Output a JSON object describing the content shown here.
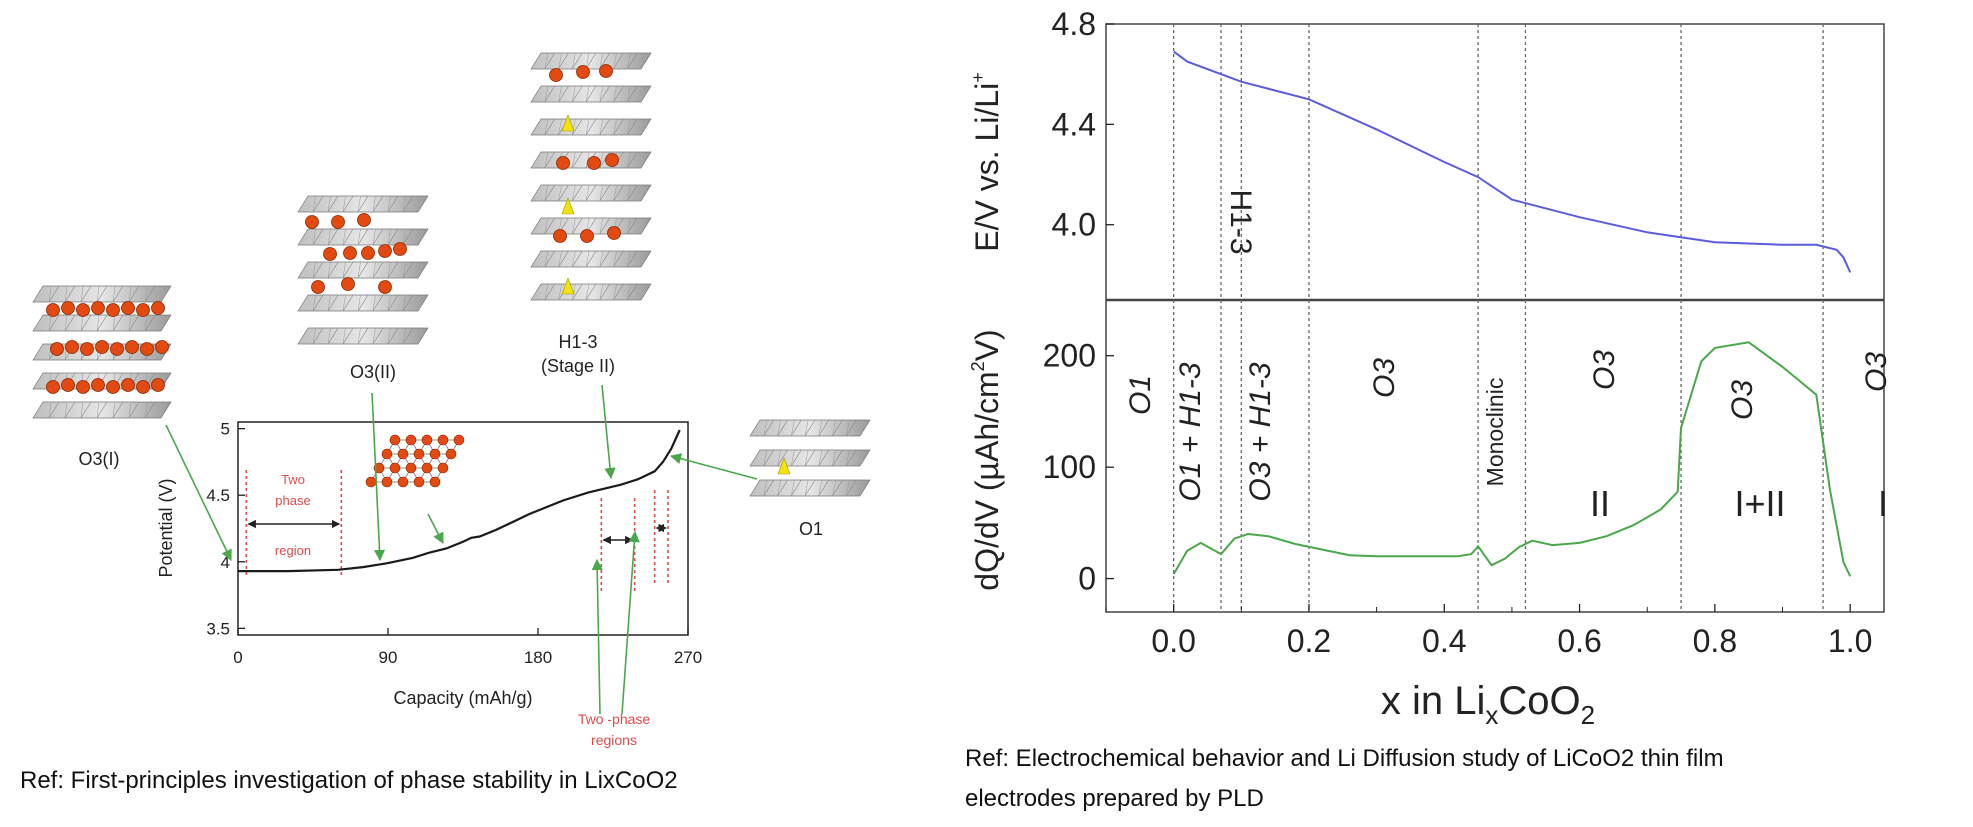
{
  "left_figure": {
    "structures": {
      "o3_i": "O3(I)",
      "o3_ii": "O3(II)",
      "h13_line1": "H1-3",
      "h13_line2": "(Stage II)",
      "o1": "O1"
    },
    "annotations": {
      "two_phase_line1": "Two",
      "two_phase_line2": "phase",
      "two_phase_line3": "region",
      "two_phase_regions_line1": "Two -phase",
      "two_phase_regions_line2": "regions"
    },
    "reference": "Ref: First-principles investigation of phase stability in LixCoO2"
  },
  "right_figure": {
    "phase_labels": {
      "o1": "O1",
      "o1_h13": "O1 + H1-3",
      "h13": "H1-3",
      "o3_h13": "O3 + H1-3",
      "o3_a": "O3",
      "monoclinic": "Monoclinic",
      "o3_b": "O3",
      "o3_c": "O3",
      "o3_d": "O3",
      "ii": "II",
      "i_ii": "I+II",
      "i": "I"
    },
    "reference_line1": "Ref: Electrochemical behavior and Li Diffusion study of LiCoO2 thin film",
    "reference_line2": "electrodes prepared by PLD"
  },
  "chart_data": [
    {
      "type": "line",
      "xlabel": "Capacity (mAh/g)",
      "ylabel": "Potential (V)",
      "xlim": [
        0,
        270
      ],
      "ylim": [
        3.45,
        5.05
      ],
      "xticks": [
        0,
        90,
        180,
        270
      ],
      "yticks": [
        3.5,
        4,
        4.5,
        5
      ],
      "grid": false,
      "two_phase_boundaries": [
        5,
        62,
        218,
        238,
        250,
        258
      ],
      "series": [
        {
          "color": "#1a1a1a",
          "x": [
            0,
            30,
            60,
            75,
            90,
            105,
            115,
            125,
            135,
            140,
            145,
            155,
            175,
            195,
            210,
            220,
            230,
            240,
            250,
            255,
            260,
            265
          ],
          "y": [
            3.93,
            3.93,
            3.94,
            3.96,
            3.99,
            4.03,
            4.07,
            4.1,
            4.15,
            4.18,
            4.19,
            4.24,
            4.36,
            4.46,
            4.52,
            4.55,
            4.58,
            4.62,
            4.68,
            4.75,
            4.85,
            4.99
          ]
        }
      ]
    },
    {
      "type": "line",
      "xlabel": "x in LixCoO2",
      "xlabel_main": "x in Li",
      "xlabel_sub": "x",
      "xlabel_tail": "CoO",
      "xlabel_sub2": "2",
      "ylabel": "E/V vs. Li/Li",
      "ylabel_sup": "+",
      "xlim": [
        -0.1,
        1.05
      ],
      "ylim": [
        3.7,
        4.8
      ],
      "yticks": [
        4.0,
        4.4,
        4.8
      ],
      "grid": false,
      "phase_boundaries": [
        0.0,
        0.07,
        0.1,
        0.2,
        0.45,
        0.52,
        0.75,
        0.96
      ],
      "series": [
        {
          "color": "#5b5bdc",
          "x": [
            0.0,
            0.02,
            0.1,
            0.2,
            0.3,
            0.4,
            0.45,
            0.5,
            0.6,
            0.7,
            0.8,
            0.9,
            0.95,
            0.98,
            0.99,
            1.0
          ],
          "y": [
            4.69,
            4.65,
            4.57,
            4.5,
            4.38,
            4.25,
            4.19,
            4.1,
            4.03,
            3.97,
            3.93,
            3.92,
            3.92,
            3.9,
            3.87,
            3.81
          ]
        }
      ]
    },
    {
      "type": "line",
      "xlabel": "x in LixCoO2",
      "ylabel": "dQ/dV (µAh/cm",
      "ylabel_sup": "2",
      "ylabel_tail": "V)",
      "xlim": [
        -0.1,
        1.05
      ],
      "ylim": [
        -30,
        250
      ],
      "xticks": [
        0.0,
        0.2,
        0.4,
        0.6,
        0.8,
        1.0
      ],
      "xtick_labels": [
        "0.0",
        "0.2",
        "0.4",
        "0.6",
        "0.8",
        "1.0"
      ],
      "yticks": [
        0,
        100,
        200
      ],
      "grid": false,
      "series": [
        {
          "color": "#4aa84a",
          "x": [
            0.0,
            0.02,
            0.04,
            0.07,
            0.09,
            0.11,
            0.14,
            0.18,
            0.22,
            0.26,
            0.3,
            0.36,
            0.42,
            0.44,
            0.45,
            0.47,
            0.49,
            0.51,
            0.53,
            0.56,
            0.6,
            0.64,
            0.68,
            0.72,
            0.745,
            0.75,
            0.78,
            0.8,
            0.85,
            0.9,
            0.95,
            0.97,
            0.99,
            1.0
          ],
          "y": [
            4,
            25,
            32,
            22,
            36,
            40,
            38,
            31,
            26,
            21,
            20,
            20,
            20,
            22,
            29,
            12,
            18,
            28,
            34,
            30,
            32,
            38,
            48,
            62,
            78,
            135,
            195,
            207,
            212,
            190,
            165,
            80,
            15,
            2
          ]
        }
      ]
    }
  ]
}
